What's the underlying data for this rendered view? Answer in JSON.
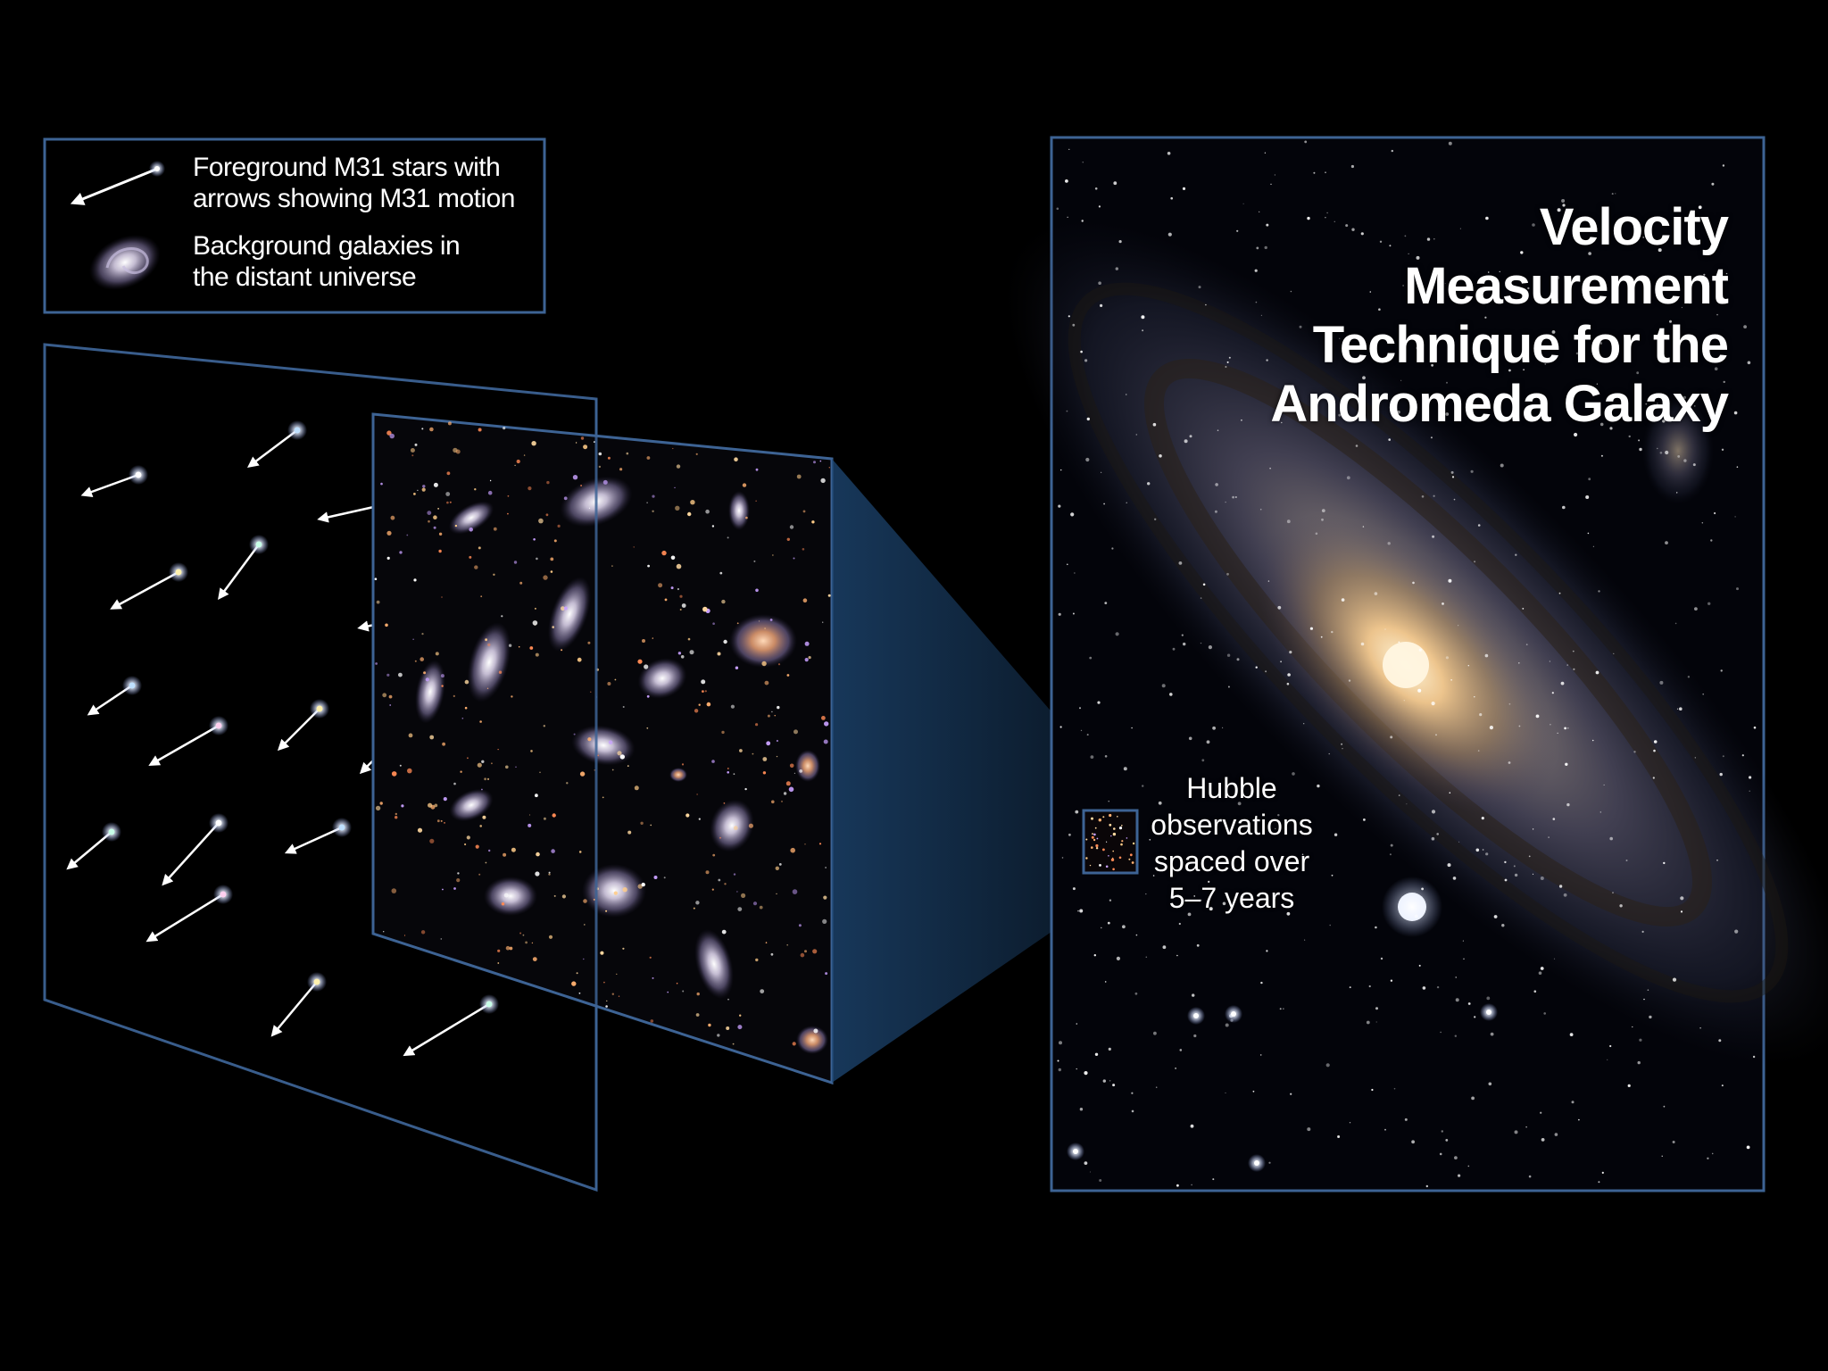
{
  "legend": {
    "star_label": [
      "Foreground M31 stars with",
      "arrows showing M31 motion"
    ],
    "galaxy_label": [
      "Background galaxies in",
      "the distant universe"
    ]
  },
  "title": [
    "Velocity",
    "Measurement",
    "Technique for the",
    "Andromeda Galaxy"
  ],
  "hubble_label": [
    "Hubble",
    "observations",
    "spaced over",
    "5–7 years"
  ],
  "colors": {
    "frame": "#3d6394",
    "background": "#000000",
    "text": "#ffffff",
    "beam": "#1f4a78",
    "galaxy_core": "#f2c88e"
  },
  "icons": {
    "legend_star": "star-with-motion-arrow-icon",
    "legend_galaxy": "spiral-galaxy-icon"
  }
}
